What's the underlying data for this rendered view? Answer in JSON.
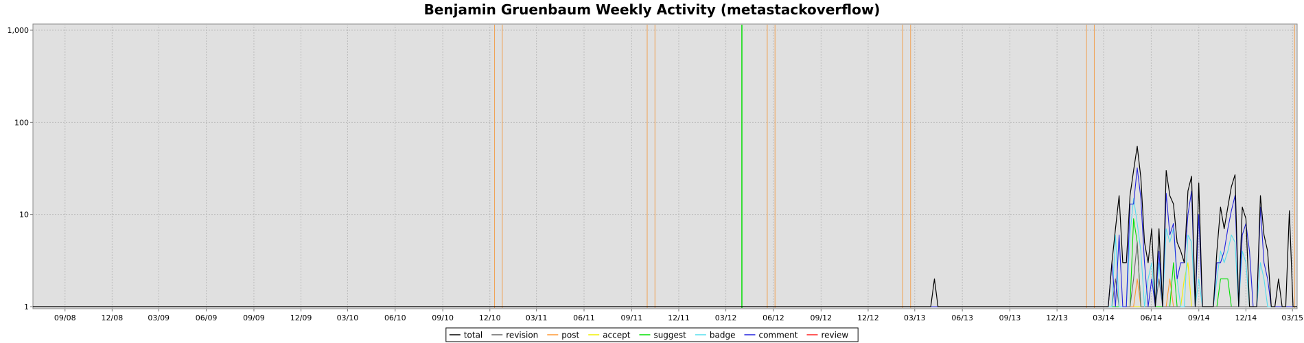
{
  "chart_data": {
    "type": "line",
    "title": "Benjamin Gruenbaum Weekly Activity (metastackoverflow)",
    "xlabel": "",
    "ylabel": "",
    "y_scale": "log",
    "ylim": [
      1,
      1000
    ],
    "xlim": [
      "2008-07-01",
      "2015-03-10"
    ],
    "grid": true,
    "legend_position": "bottom",
    "x_tick_labels": [
      "09/08",
      "12/08",
      "03/09",
      "06/09",
      "09/09",
      "12/09",
      "03/10",
      "06/10",
      "09/10",
      "12/10",
      "03/11",
      "06/11",
      "09/11",
      "12/11",
      "03/12",
      "06/12",
      "09/12",
      "12/12",
      "03/13",
      "06/13",
      "09/13",
      "12/13",
      "03/14",
      "06/14",
      "09/14",
      "12/14",
      "03/15"
    ],
    "y_tick_labels": [
      "1",
      "10",
      "100",
      "1,000"
    ],
    "y_tick_values": [
      1,
      10,
      100,
      1000
    ],
    "vertical_markers": [
      {
        "date": "2010-12-10",
        "color": "#f0a050"
      },
      {
        "date": "2010-12-25",
        "color": "#f0a050"
      },
      {
        "date": "2011-10-01",
        "color": "#f0a050"
      },
      {
        "date": "2011-10-16",
        "color": "#f0a050"
      },
      {
        "date": "2012-04-01",
        "color": "#00dd00"
      },
      {
        "date": "2012-05-20",
        "color": "#f0a050"
      },
      {
        "date": "2012-06-04",
        "color": "#f0a050"
      },
      {
        "date": "2013-02-06",
        "color": "#f0a050"
      },
      {
        "date": "2013-02-21",
        "color": "#f0a050"
      },
      {
        "date": "2014-01-27",
        "color": "#f0a050"
      },
      {
        "date": "2014-02-11",
        "color": "#f0a050"
      },
      {
        "date": "2015-03-05",
        "color": "#f0a050"
      }
    ],
    "series": [
      {
        "name": "total",
        "color": "#000000",
        "points": [
          [
            "2013-04-01",
            1
          ],
          [
            "2013-04-08",
            2
          ],
          [
            "2013-04-15",
            1
          ],
          [
            "2014-03-10",
            1
          ],
          [
            "2014-03-17",
            3
          ],
          [
            "2014-03-24",
            7
          ],
          [
            "2014-03-31",
            16
          ],
          [
            "2014-04-07",
            3
          ],
          [
            "2014-04-14",
            3
          ],
          [
            "2014-04-21",
            16
          ],
          [
            "2014-04-28",
            30
          ],
          [
            "2014-05-05",
            55
          ],
          [
            "2014-05-12",
            25
          ],
          [
            "2014-05-19",
            5
          ],
          [
            "2014-05-26",
            3
          ],
          [
            "2014-06-02",
            7
          ],
          [
            "2014-06-09",
            1
          ],
          [
            "2014-06-16",
            7
          ],
          [
            "2014-06-23",
            1
          ],
          [
            "2014-06-30",
            30
          ],
          [
            "2014-07-07",
            16
          ],
          [
            "2014-07-14",
            13
          ],
          [
            "2014-07-21",
            5
          ],
          [
            "2014-07-28",
            4
          ],
          [
            "2014-08-04",
            3
          ],
          [
            "2014-08-11",
            18
          ],
          [
            "2014-08-18",
            26
          ],
          [
            "2014-08-25",
            1
          ],
          [
            "2014-09-01",
            22
          ],
          [
            "2014-09-08",
            1
          ],
          [
            "2014-09-15",
            1
          ],
          [
            "2014-09-22",
            1
          ],
          [
            "2014-09-29",
            1
          ],
          [
            "2014-10-06",
            4
          ],
          [
            "2014-10-13",
            12
          ],
          [
            "2014-10-20",
            7
          ],
          [
            "2014-10-27",
            12
          ],
          [
            "2014-11-03",
            20
          ],
          [
            "2014-11-10",
            27
          ],
          [
            "2014-11-17",
            1
          ],
          [
            "2014-11-24",
            12
          ],
          [
            "2014-12-01",
            9
          ],
          [
            "2014-12-08",
            1
          ],
          [
            "2014-12-15",
            1
          ],
          [
            "2014-12-22",
            1
          ],
          [
            "2014-12-29",
            16
          ],
          [
            "2015-01-05",
            6
          ],
          [
            "2015-01-12",
            4
          ],
          [
            "2015-01-19",
            1
          ],
          [
            "2015-01-26",
            1
          ],
          [
            "2015-02-02",
            2
          ],
          [
            "2015-02-09",
            1
          ],
          [
            "2015-02-16",
            1
          ],
          [
            "2015-02-23",
            11
          ]
        ]
      },
      {
        "name": "revision",
        "color": "#666666",
        "points": [
          [
            "2014-03-17",
            1
          ],
          [
            "2014-03-24",
            2
          ],
          [
            "2014-03-31",
            1
          ],
          [
            "2014-04-07",
            1
          ],
          [
            "2014-04-14",
            1
          ],
          [
            "2014-04-21",
            1
          ],
          [
            "2014-04-28",
            2
          ],
          [
            "2014-05-05",
            5
          ],
          [
            "2014-05-12",
            1
          ],
          [
            "2014-05-19",
            1
          ],
          [
            "2014-06-16",
            2
          ],
          [
            "2014-06-23",
            1
          ],
          [
            "2014-06-30",
            1
          ]
        ]
      },
      {
        "name": "post",
        "color": "#ff9933",
        "points": [
          [
            "2014-04-28",
            1
          ],
          [
            "2014-05-05",
            2
          ],
          [
            "2014-05-12",
            1
          ],
          [
            "2014-06-30",
            1
          ],
          [
            "2014-07-07",
            2
          ],
          [
            "2014-07-14",
            1
          ]
        ]
      },
      {
        "name": "accept",
        "color": "#f0f000",
        "points": [
          [
            "2014-07-28",
            1
          ],
          [
            "2014-08-04",
            2
          ],
          [
            "2014-08-11",
            3
          ],
          [
            "2014-08-18",
            1
          ]
        ]
      },
      {
        "name": "suggest",
        "color": "#00e000",
        "points": [
          [
            "2014-04-21",
            1
          ],
          [
            "2014-04-28",
            9
          ],
          [
            "2014-05-05",
            5
          ],
          [
            "2014-05-12",
            1
          ],
          [
            "2014-07-07",
            1
          ],
          [
            "2014-07-14",
            3
          ],
          [
            "2014-07-21",
            1
          ],
          [
            "2014-10-06",
            1
          ],
          [
            "2014-10-13",
            2
          ],
          [
            "2014-10-20",
            2
          ],
          [
            "2014-10-27",
            2
          ],
          [
            "2014-11-03",
            1
          ]
        ]
      },
      {
        "name": "badge",
        "color": "#55ddee",
        "points": [
          [
            "2014-03-17",
            1
          ],
          [
            "2014-03-24",
            6
          ],
          [
            "2014-03-31",
            1
          ],
          [
            "2014-04-07",
            1
          ],
          [
            "2014-04-14",
            1
          ],
          [
            "2014-04-21",
            6
          ],
          [
            "2014-04-28",
            15
          ],
          [
            "2014-05-05",
            8
          ],
          [
            "2014-05-12",
            4
          ],
          [
            "2014-05-19",
            1
          ],
          [
            "2014-05-26",
            2
          ],
          [
            "2014-06-02",
            3
          ],
          [
            "2014-06-09",
            1
          ],
          [
            "2014-06-16",
            3
          ],
          [
            "2014-06-23",
            1
          ],
          [
            "2014-06-30",
            7
          ],
          [
            "2014-07-07",
            5
          ],
          [
            "2014-07-14",
            7
          ],
          [
            "2014-07-21",
            2
          ],
          [
            "2014-07-28",
            1
          ],
          [
            "2014-08-04",
            1
          ],
          [
            "2014-08-11",
            6
          ],
          [
            "2014-08-18",
            5
          ],
          [
            "2014-08-25",
            1
          ],
          [
            "2014-09-01",
            2
          ],
          [
            "2014-09-08",
            1
          ],
          [
            "2014-09-15",
            1
          ],
          [
            "2014-09-22",
            1
          ],
          [
            "2014-09-29",
            1
          ],
          [
            "2014-10-06",
            2
          ],
          [
            "2014-10-13",
            4
          ],
          [
            "2014-10-20",
            3
          ],
          [
            "2014-10-27",
            4
          ],
          [
            "2014-11-03",
            6
          ],
          [
            "2014-11-10",
            5
          ],
          [
            "2014-11-17",
            1
          ],
          [
            "2014-11-24",
            4
          ],
          [
            "2014-12-01",
            3
          ],
          [
            "2014-12-08",
            1
          ],
          [
            "2014-12-29",
            3
          ],
          [
            "2015-01-05",
            2
          ],
          [
            "2015-01-12",
            1
          ]
        ]
      },
      {
        "name": "comment",
        "color": "#2222dd",
        "points": [
          [
            "2014-03-10",
            1
          ],
          [
            "2014-03-17",
            3
          ],
          [
            "2014-03-24",
            1
          ],
          [
            "2014-03-31",
            6
          ],
          [
            "2014-04-07",
            1
          ],
          [
            "2014-04-14",
            1
          ],
          [
            "2014-04-21",
            13
          ],
          [
            "2014-04-28",
            13
          ],
          [
            "2014-05-05",
            32
          ],
          [
            "2014-05-12",
            15
          ],
          [
            "2014-05-19",
            3
          ],
          [
            "2014-05-26",
            1
          ],
          [
            "2014-06-02",
            2
          ],
          [
            "2014-06-09",
            1
          ],
          [
            "2014-06-16",
            4
          ],
          [
            "2014-06-23",
            1
          ],
          [
            "2014-06-30",
            17
          ],
          [
            "2014-07-07",
            6
          ],
          [
            "2014-07-14",
            8
          ],
          [
            "2014-07-21",
            2
          ],
          [
            "2014-07-28",
            3
          ],
          [
            "2014-08-04",
            3
          ],
          [
            "2014-08-11",
            10
          ],
          [
            "2014-08-18",
            18
          ],
          [
            "2014-08-25",
            1
          ],
          [
            "2014-09-01",
            10
          ],
          [
            "2014-09-08",
            1
          ],
          [
            "2014-09-15",
            1
          ],
          [
            "2014-09-22",
            1
          ],
          [
            "2014-09-29",
            1
          ],
          [
            "2014-10-06",
            3
          ],
          [
            "2014-10-13",
            3
          ],
          [
            "2014-10-20",
            4
          ],
          [
            "2014-10-27",
            7
          ],
          [
            "2014-11-03",
            11
          ],
          [
            "2014-11-10",
            16
          ],
          [
            "2014-11-17",
            1
          ],
          [
            "2014-11-24",
            6
          ],
          [
            "2014-12-01",
            8
          ],
          [
            "2014-12-08",
            4
          ],
          [
            "2014-12-15",
            1
          ],
          [
            "2014-12-22",
            1
          ],
          [
            "2014-12-29",
            12
          ],
          [
            "2015-01-05",
            3
          ],
          [
            "2015-01-12",
            2
          ],
          [
            "2015-01-19",
            1
          ]
        ]
      },
      {
        "name": "review",
        "color": "#ff2222",
        "points": []
      }
    ]
  }
}
